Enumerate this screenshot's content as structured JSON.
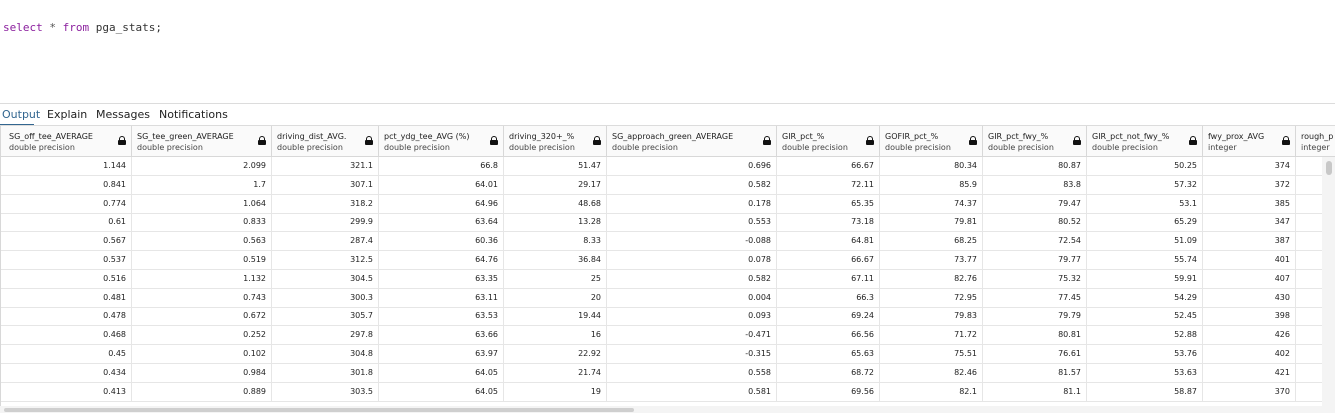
{
  "query": {
    "keyword_select": "select",
    "star": "*",
    "keyword_from": "from",
    "table": "pga_stats;"
  },
  "tabs": [
    {
      "label": "Output",
      "active": true
    },
    {
      "label": "Explain",
      "active": false
    },
    {
      "label": "Messages",
      "active": false
    },
    {
      "label": "Notifications",
      "active": false
    }
  ],
  "columns": [
    {
      "name": "SG_off_tee_AVERAGE",
      "type": "double precision",
      "icon": "lock-icon"
    },
    {
      "name": "SG_tee_green_AVERAGE",
      "type": "double precision",
      "icon": "lock-icon"
    },
    {
      "name": "driving_dist_AVG.",
      "type": "double precision",
      "icon": "lock-icon"
    },
    {
      "name": "pct_ydg_tee_AVG (%)",
      "type": "double precision",
      "icon": "lock-icon"
    },
    {
      "name": "driving_320+_%",
      "type": "double precision",
      "icon": "lock-icon"
    },
    {
      "name": "SG_approach_green_AVERAGE",
      "type": "double precision",
      "icon": "lock-icon"
    },
    {
      "name": "GIR_pct_%",
      "type": "double precision",
      "icon": "lock-icon"
    },
    {
      "name": "GOFIR_pct_%",
      "type": "double precision",
      "icon": "lock-icon"
    },
    {
      "name": "GIR_pct_fwy_%",
      "type": "double precision",
      "icon": "lock-icon"
    },
    {
      "name": "GIR_pct_not_fwy_%",
      "type": "double precision",
      "icon": "lock-icon"
    },
    {
      "name": "fwy_prox_AVG",
      "type": "integer",
      "icon": "lock-icon"
    },
    {
      "name": "rough_p",
      "type": "integer",
      "icon": ""
    }
  ],
  "rows": [
    [
      "1.144",
      "2.099",
      "321.1",
      "66.8",
      "51.47",
      "0.696",
      "66.67",
      "80.34",
      "80.87",
      "50.25",
      "374",
      ""
    ],
    [
      "0.841",
      "1.7",
      "307.1",
      "64.01",
      "29.17",
      "0.582",
      "72.11",
      "85.9",
      "83.8",
      "57.32",
      "372",
      ""
    ],
    [
      "0.774",
      "1.064",
      "318.2",
      "64.96",
      "48.68",
      "0.178",
      "65.35",
      "74.37",
      "79.47",
      "53.1",
      "385",
      ""
    ],
    [
      "0.61",
      "0.833",
      "299.9",
      "63.64",
      "13.28",
      "0.553",
      "73.18",
      "79.81",
      "80.52",
      "65.29",
      "347",
      ""
    ],
    [
      "0.567",
      "0.563",
      "287.4",
      "60.36",
      "8.33",
      "-0.088",
      "64.81",
      "68.25",
      "72.54",
      "51.09",
      "387",
      ""
    ],
    [
      "0.537",
      "0.519",
      "312.5",
      "64.76",
      "36.84",
      "0.078",
      "66.67",
      "73.77",
      "79.77",
      "55.74",
      "401",
      ""
    ],
    [
      "0.516",
      "1.132",
      "304.5",
      "63.35",
      "25",
      "0.582",
      "67.11",
      "82.76",
      "75.32",
      "59.91",
      "407",
      ""
    ],
    [
      "0.481",
      "0.743",
      "300.3",
      "63.11",
      "20",
      "0.004",
      "66.3",
      "72.95",
      "77.45",
      "54.29",
      "430",
      ""
    ],
    [
      "0.478",
      "0.672",
      "305.7",
      "63.53",
      "19.44",
      "0.093",
      "69.24",
      "79.83",
      "79.79",
      "52.45",
      "398",
      ""
    ],
    [
      "0.468",
      "0.252",
      "297.8",
      "63.66",
      "16",
      "-0.471",
      "66.56",
      "71.72",
      "80.81",
      "52.88",
      "426",
      ""
    ],
    [
      "0.45",
      "0.102",
      "304.8",
      "63.97",
      "22.92",
      "-0.315",
      "65.63",
      "75.51",
      "76.61",
      "53.76",
      "402",
      ""
    ],
    [
      "0.434",
      "0.984",
      "301.8",
      "64.05",
      "21.74",
      "0.558",
      "68.72",
      "82.46",
      "81.57",
      "53.63",
      "421",
      ""
    ],
    [
      "0.413",
      "0.889",
      "303.5",
      "64.05",
      "19",
      "0.581",
      "69.56",
      "82.1",
      "81.1",
      "58.87",
      "370",
      ""
    ]
  ],
  "colors": {
    "keyword": "#8b1f9e",
    "active_tab": "#326690"
  }
}
